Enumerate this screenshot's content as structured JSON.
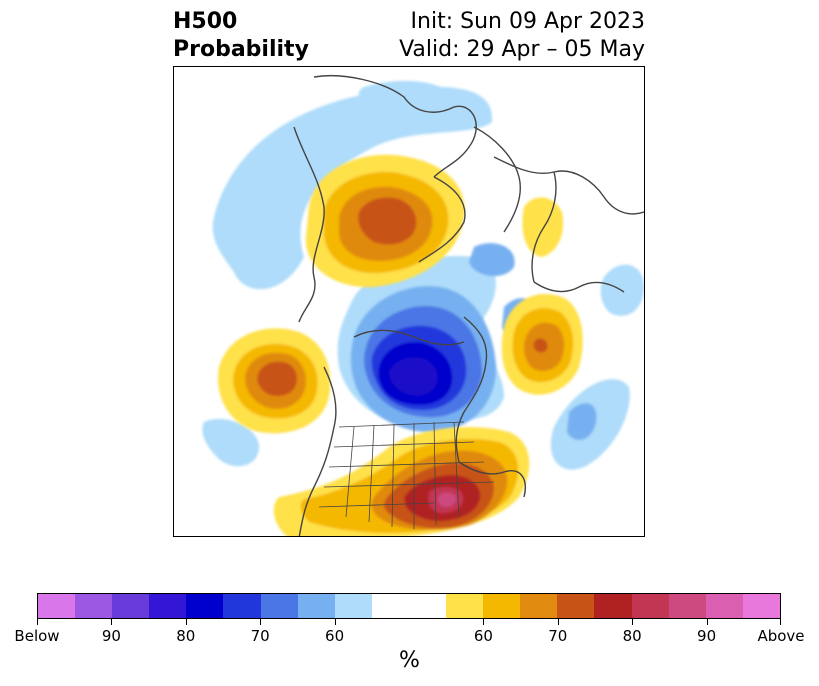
{
  "title": {
    "left_line1": "H500",
    "left_line2": "Probability",
    "right_line1": "Init: Sun 09 Apr 2023",
    "right_line2": "Valid: 29 Apr – 05 May"
  },
  "colorbar": {
    "unit": "%",
    "colors": [
      "#d977ea",
      "#9c57e3",
      "#6a3bdb",
      "#3417d6",
      "#0000cc",
      "#2137dc",
      "#4b76e6",
      "#77b0f0",
      "#aedcfa",
      "#ffffff",
      "#ffffff",
      "#ffe14a",
      "#f5b800",
      "#e08a10",
      "#c75316",
      "#b02222",
      "#c23553",
      "#cc4a80",
      "#db5fb0",
      "#e878dc"
    ],
    "tick_labels": [
      "Below",
      "90",
      "80",
      "70",
      "60",
      "60",
      "70",
      "80",
      "90",
      "Above"
    ]
  },
  "legend_colors": {
    "below_strong": "#0000cc",
    "above_strong": "#b02222"
  }
}
